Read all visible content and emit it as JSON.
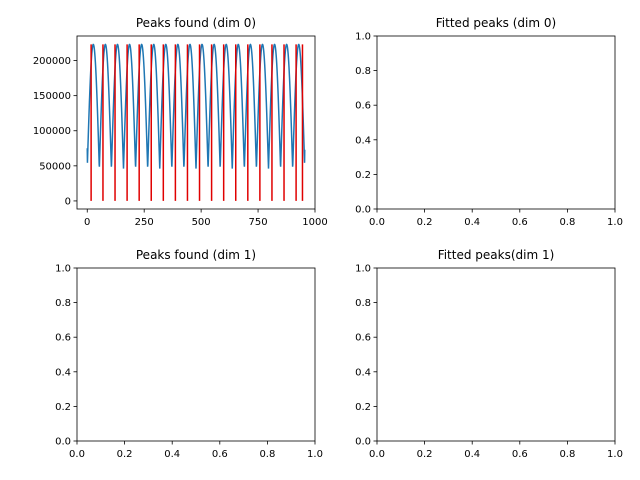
{
  "chart_data": [
    {
      "type": "line",
      "title": "Peaks found (dim 0)",
      "xlabel": "",
      "ylabel": "",
      "xlim": [
        -45,
        1000
      ],
      "ylim": [
        -11500,
        235000
      ],
      "xticks": [
        0,
        250,
        500,
        750,
        1000
      ],
      "yticks": [
        0,
        50000,
        100000,
        150000,
        200000
      ],
      "xtick_labels": [
        "0",
        "250",
        "500",
        "750",
        "1000"
      ],
      "ytick_labels": [
        "0",
        "50000",
        "100000",
        "150000",
        "200000"
      ],
      "grid": false,
      "signal": {
        "color": "#1f77b4",
        "x_start": 0,
        "x_end": 955,
        "y_min": 46000,
        "y_max": 223000,
        "y_start": 75000,
        "y_end": 73000,
        "n_cycles": 18
      },
      "peaks": {
        "color": "#e00000",
        "x": [
          17,
          69,
          122,
          175,
          228,
          281,
          334,
          387,
          440,
          493,
          546,
          599,
          652,
          705,
          758,
          811,
          864,
          917,
          945
        ],
        "y_min": 0,
        "y_max": 223000
      }
    },
    {
      "type": "line",
      "title": "Fitted peaks (dim 0)",
      "xlim": [
        0,
        1
      ],
      "ylim": [
        0,
        1
      ],
      "xticks": [
        0,
        0.2,
        0.4,
        0.6,
        0.8,
        1.0
      ],
      "yticks": [
        0,
        0.2,
        0.4,
        0.6,
        0.8,
        1.0
      ],
      "xtick_labels": [
        "0.0",
        "0.2",
        "0.4",
        "0.6",
        "0.8",
        "1.0"
      ],
      "ytick_labels": [
        "0.0",
        "0.2",
        "0.4",
        "0.6",
        "0.8",
        "1.0"
      ],
      "grid": false
    },
    {
      "type": "line",
      "title": "Peaks found (dim 1)",
      "xlim": [
        0,
        1
      ],
      "ylim": [
        0,
        1
      ],
      "xticks": [
        0,
        0.2,
        0.4,
        0.6,
        0.8,
        1.0
      ],
      "yticks": [
        0,
        0.2,
        0.4,
        0.6,
        0.8,
        1.0
      ],
      "xtick_labels": [
        "0.0",
        "0.2",
        "0.4",
        "0.6",
        "0.8",
        "1.0"
      ],
      "ytick_labels": [
        "0.0",
        "0.2",
        "0.4",
        "0.6",
        "0.8",
        "1.0"
      ],
      "grid": false
    },
    {
      "type": "line",
      "title": "Fitted peaks(dim 1)",
      "xlim": [
        0,
        1
      ],
      "ylim": [
        0,
        1
      ],
      "xticks": [
        0,
        0.2,
        0.4,
        0.6,
        0.8,
        1.0
      ],
      "yticks": [
        0,
        0.2,
        0.4,
        0.6,
        0.8,
        1.0
      ],
      "xtick_labels": [
        "0.0",
        "0.2",
        "0.4",
        "0.6",
        "0.8",
        "1.0"
      ],
      "ytick_labels": [
        "0.0",
        "0.2",
        "0.4",
        "0.6",
        "0.8",
        "1.0"
      ],
      "grid": false
    }
  ]
}
